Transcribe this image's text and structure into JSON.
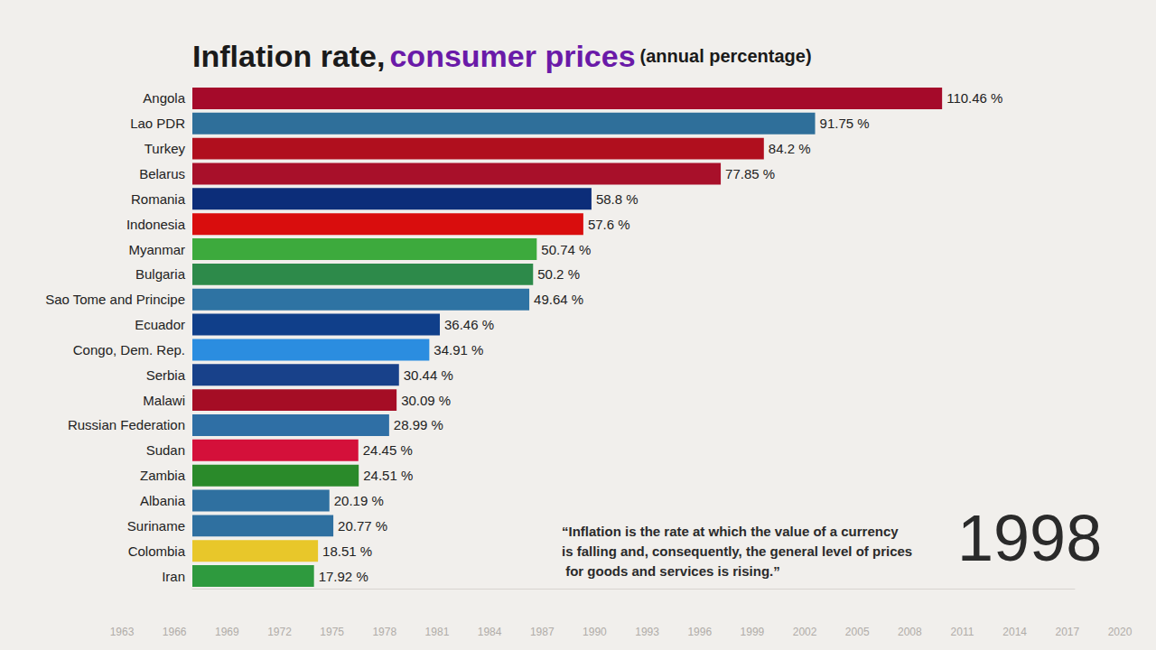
{
  "chart_data": {
    "type": "bar",
    "orientation": "horizontal",
    "title": "Inflation rate,",
    "title_highlight": "consumer prices",
    "subtitle": "(annual percentage)",
    "categories": [
      "Angola",
      "Lao PDR",
      "Turkey",
      "Belarus",
      "Romania",
      "Indonesia",
      "Myanmar",
      "Bulgaria",
      "Sao Tome and Principe",
      "Ecuador",
      "Congo, Dem. Rep.",
      "Serbia",
      "Malawi",
      "Russian Federation",
      "Sudan",
      "Zambia",
      "Albania",
      "Suriname",
      "Colombia",
      "Iran"
    ],
    "values": [
      110.46,
      91.75,
      84.2,
      77.85,
      58.8,
      57.6,
      50.74,
      50.2,
      49.64,
      36.46,
      34.91,
      30.44,
      30.09,
      28.99,
      24.45,
      24.51,
      20.19,
      20.77,
      18.51,
      17.92
    ],
    "value_labels": [
      "110.46 %",
      "91.75 %",
      "84.2 %",
      "77.85 %",
      "58.8 %",
      "57.6 %",
      "50.74 %",
      "50.2 %",
      "49.64 %",
      "36.46 %",
      "34.91 %",
      "30.44 %",
      "30.09 %",
      "28.99 %",
      "24.45 %",
      "24.51 %",
      "20.19 %",
      "20.77 %",
      "18.51 %",
      "17.92 %"
    ],
    "colors": [
      "#a50a2a",
      "#2f6f9a",
      "#b00f1e",
      "#a8102a",
      "#0c2d79",
      "#d90d0d",
      "#3daa3d",
      "#2d8a4a",
      "#2e73a3",
      "#103f8a",
      "#2b8de0",
      "#18418a",
      "#a50d25",
      "#2f6fa5",
      "#d4103a",
      "#2a8a2a",
      "#2f70a0",
      "#2f70a0",
      "#e8c72a",
      "#2e9a3e"
    ],
    "xlim": [
      0,
      130
    ],
    "tick_labels": false,
    "grid": false,
    "data_labels": true,
    "year": "1998",
    "quote": "“Inflation is the rate at which the value of a currency is falling and, consequently, the general level of prices for goods and services is rising.”",
    "timeline": [
      "1963",
      "1966",
      "1969",
      "1972",
      "1975",
      "1978",
      "1981",
      "1984",
      "1987",
      "1990",
      "1993",
      "1996",
      "1999",
      "2002",
      "2005",
      "2008",
      "2011",
      "2014",
      "2017",
      "2020"
    ]
  }
}
